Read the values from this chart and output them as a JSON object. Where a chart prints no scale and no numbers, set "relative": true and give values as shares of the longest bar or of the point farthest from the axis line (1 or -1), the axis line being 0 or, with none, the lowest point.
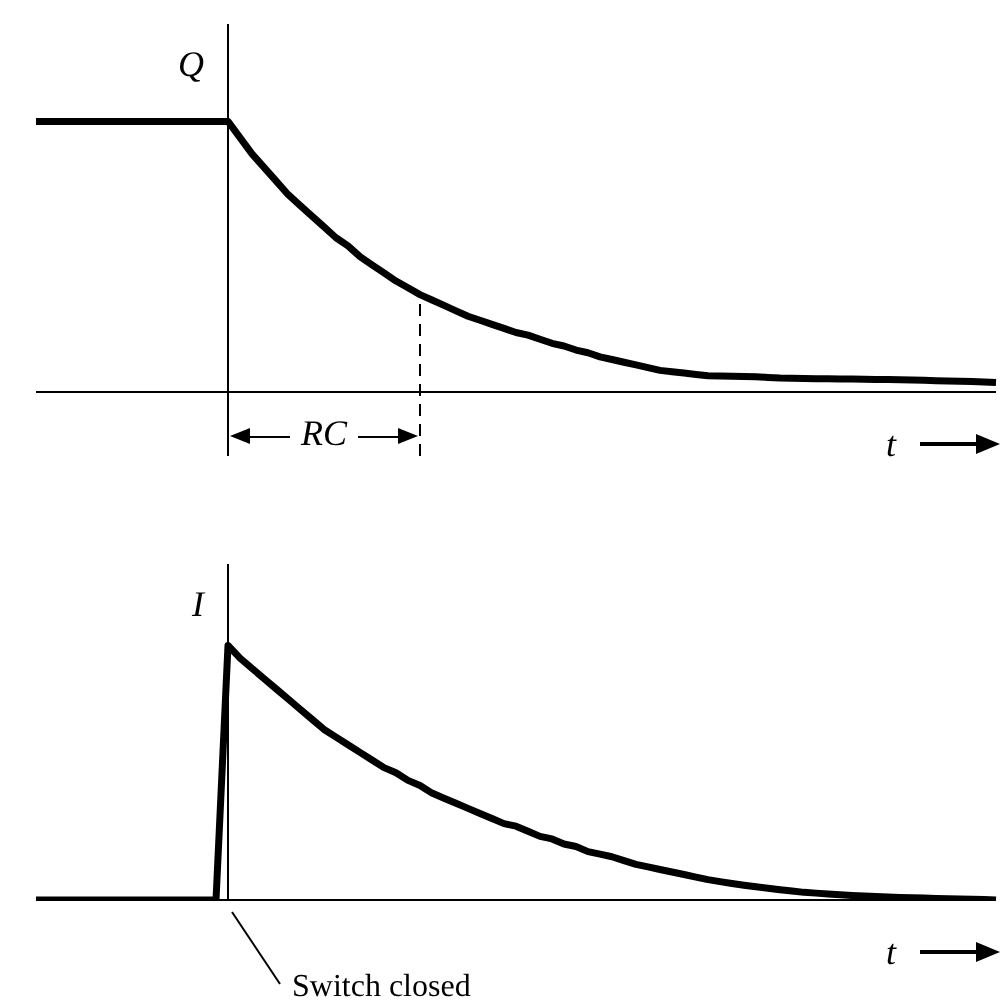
{
  "chart_data": [
    {
      "type": "line",
      "relative": true,
      "ylabel": "Q",
      "xlabel": "t",
      "annotations": [
        "RC"
      ],
      "categories": [
        null,
        null,
        null,
        null,
        null,
        null,
        null,
        null,
        null,
        null,
        null,
        null,
        null,
        null,
        null,
        null,
        null,
        null,
        null,
        null,
        null,
        null,
        null,
        null,
        null,
        null,
        null,
        null,
        null,
        null,
        null,
        null,
        null,
        null,
        null,
        null,
        null,
        null,
        null,
        null,
        null,
        null,
        null,
        null,
        null,
        null,
        null,
        null,
        null,
        null,
        null,
        null,
        null,
        null,
        null,
        null,
        null,
        null,
        null,
        null,
        null,
        null,
        null,
        null,
        null,
        null,
        null,
        null,
        null,
        null,
        null,
        null,
        null,
        null,
        null,
        null,
        null,
        null,
        null,
        null,
        null
      ],
      "series": [
        {
          "color": "#000000",
          "values": [
            1,
            1,
            1,
            1,
            1,
            1,
            1,
            1,
            1,
            1,
            1,
            1,
            1,
            1,
            1,
            1,
            1,
            0.94,
            0.88,
            0.83,
            0.78,
            0.73,
            0.69,
            0.65,
            0.61,
            0.57,
            0.54,
            0.5,
            0.47,
            0.44,
            0.41,
            0.385,
            0.36,
            0.34,
            0.32,
            0.3,
            0.28,
            0.265,
            0.25,
            0.235,
            0.22,
            0.21,
            0.195,
            0.18,
            0.17,
            0.155,
            0.145,
            0.13,
            0.12,
            0.11,
            0.1,
            0.09,
            0.08,
            0.075,
            0.07,
            0.065,
            0.06,
            0.059,
            0.058,
            0.057,
            0.056,
            0.054,
            0.052,
            0.051,
            0.05,
            0.049,
            0.049,
            0.048,
            0.048,
            0.047,
            0.046,
            0.046,
            0.045,
            0.044,
            0.043,
            0.042,
            0.041,
            0.04,
            0.039,
            0.037,
            0.035
          ]
        }
      ]
    },
    {
      "type": "line",
      "relative": true,
      "ylabel": "I",
      "xlabel": "t",
      "annotations": [
        "Switch closed"
      ],
      "categories": [
        null,
        null,
        null,
        null,
        null,
        null,
        null,
        null,
        null,
        null,
        null,
        null,
        null,
        null,
        null,
        null,
        null,
        null,
        null,
        null,
        null,
        null,
        null,
        null,
        null,
        null,
        null,
        null,
        null,
        null,
        null,
        null,
        null,
        null,
        null,
        null,
        null,
        null,
        null,
        null,
        null,
        null,
        null,
        null,
        null,
        null,
        null,
        null,
        null,
        null,
        null,
        null,
        null,
        null,
        null,
        null,
        null,
        null,
        null,
        null,
        null,
        null,
        null,
        null,
        null,
        null,
        null,
        null,
        null,
        null,
        null,
        null,
        null,
        null,
        null,
        null,
        null,
        null,
        null,
        null,
        null
      ],
      "series": [
        {
          "color": "#000000",
          "values": [
            0,
            0,
            0,
            0,
            0,
            0,
            0,
            0,
            0,
            0,
            0,
            0,
            0,
            0,
            0,
            0,
            1,
            0.95,
            0.91,
            0.87,
            0.83,
            0.79,
            0.75,
            0.71,
            0.67,
            0.64,
            0.61,
            0.58,
            0.55,
            0.52,
            0.5,
            0.47,
            0.45,
            0.42,
            0.4,
            0.38,
            0.36,
            0.34,
            0.32,
            0.3,
            0.29,
            0.27,
            0.25,
            0.24,
            0.22,
            0.21,
            0.19,
            0.18,
            0.17,
            0.155,
            0.14,
            0.13,
            0.12,
            0.11,
            0.1,
            0.09,
            0.08,
            0.072,
            0.065,
            0.058,
            0.052,
            0.046,
            0.04,
            0.035,
            0.03,
            0.027,
            0.024,
            0.021,
            0.018,
            0.016,
            0.014,
            0.012,
            0.01,
            0.009,
            0.008,
            0.006,
            0.005,
            0.004,
            0.003,
            0.002,
            0
          ]
        }
      ]
    }
  ]
}
